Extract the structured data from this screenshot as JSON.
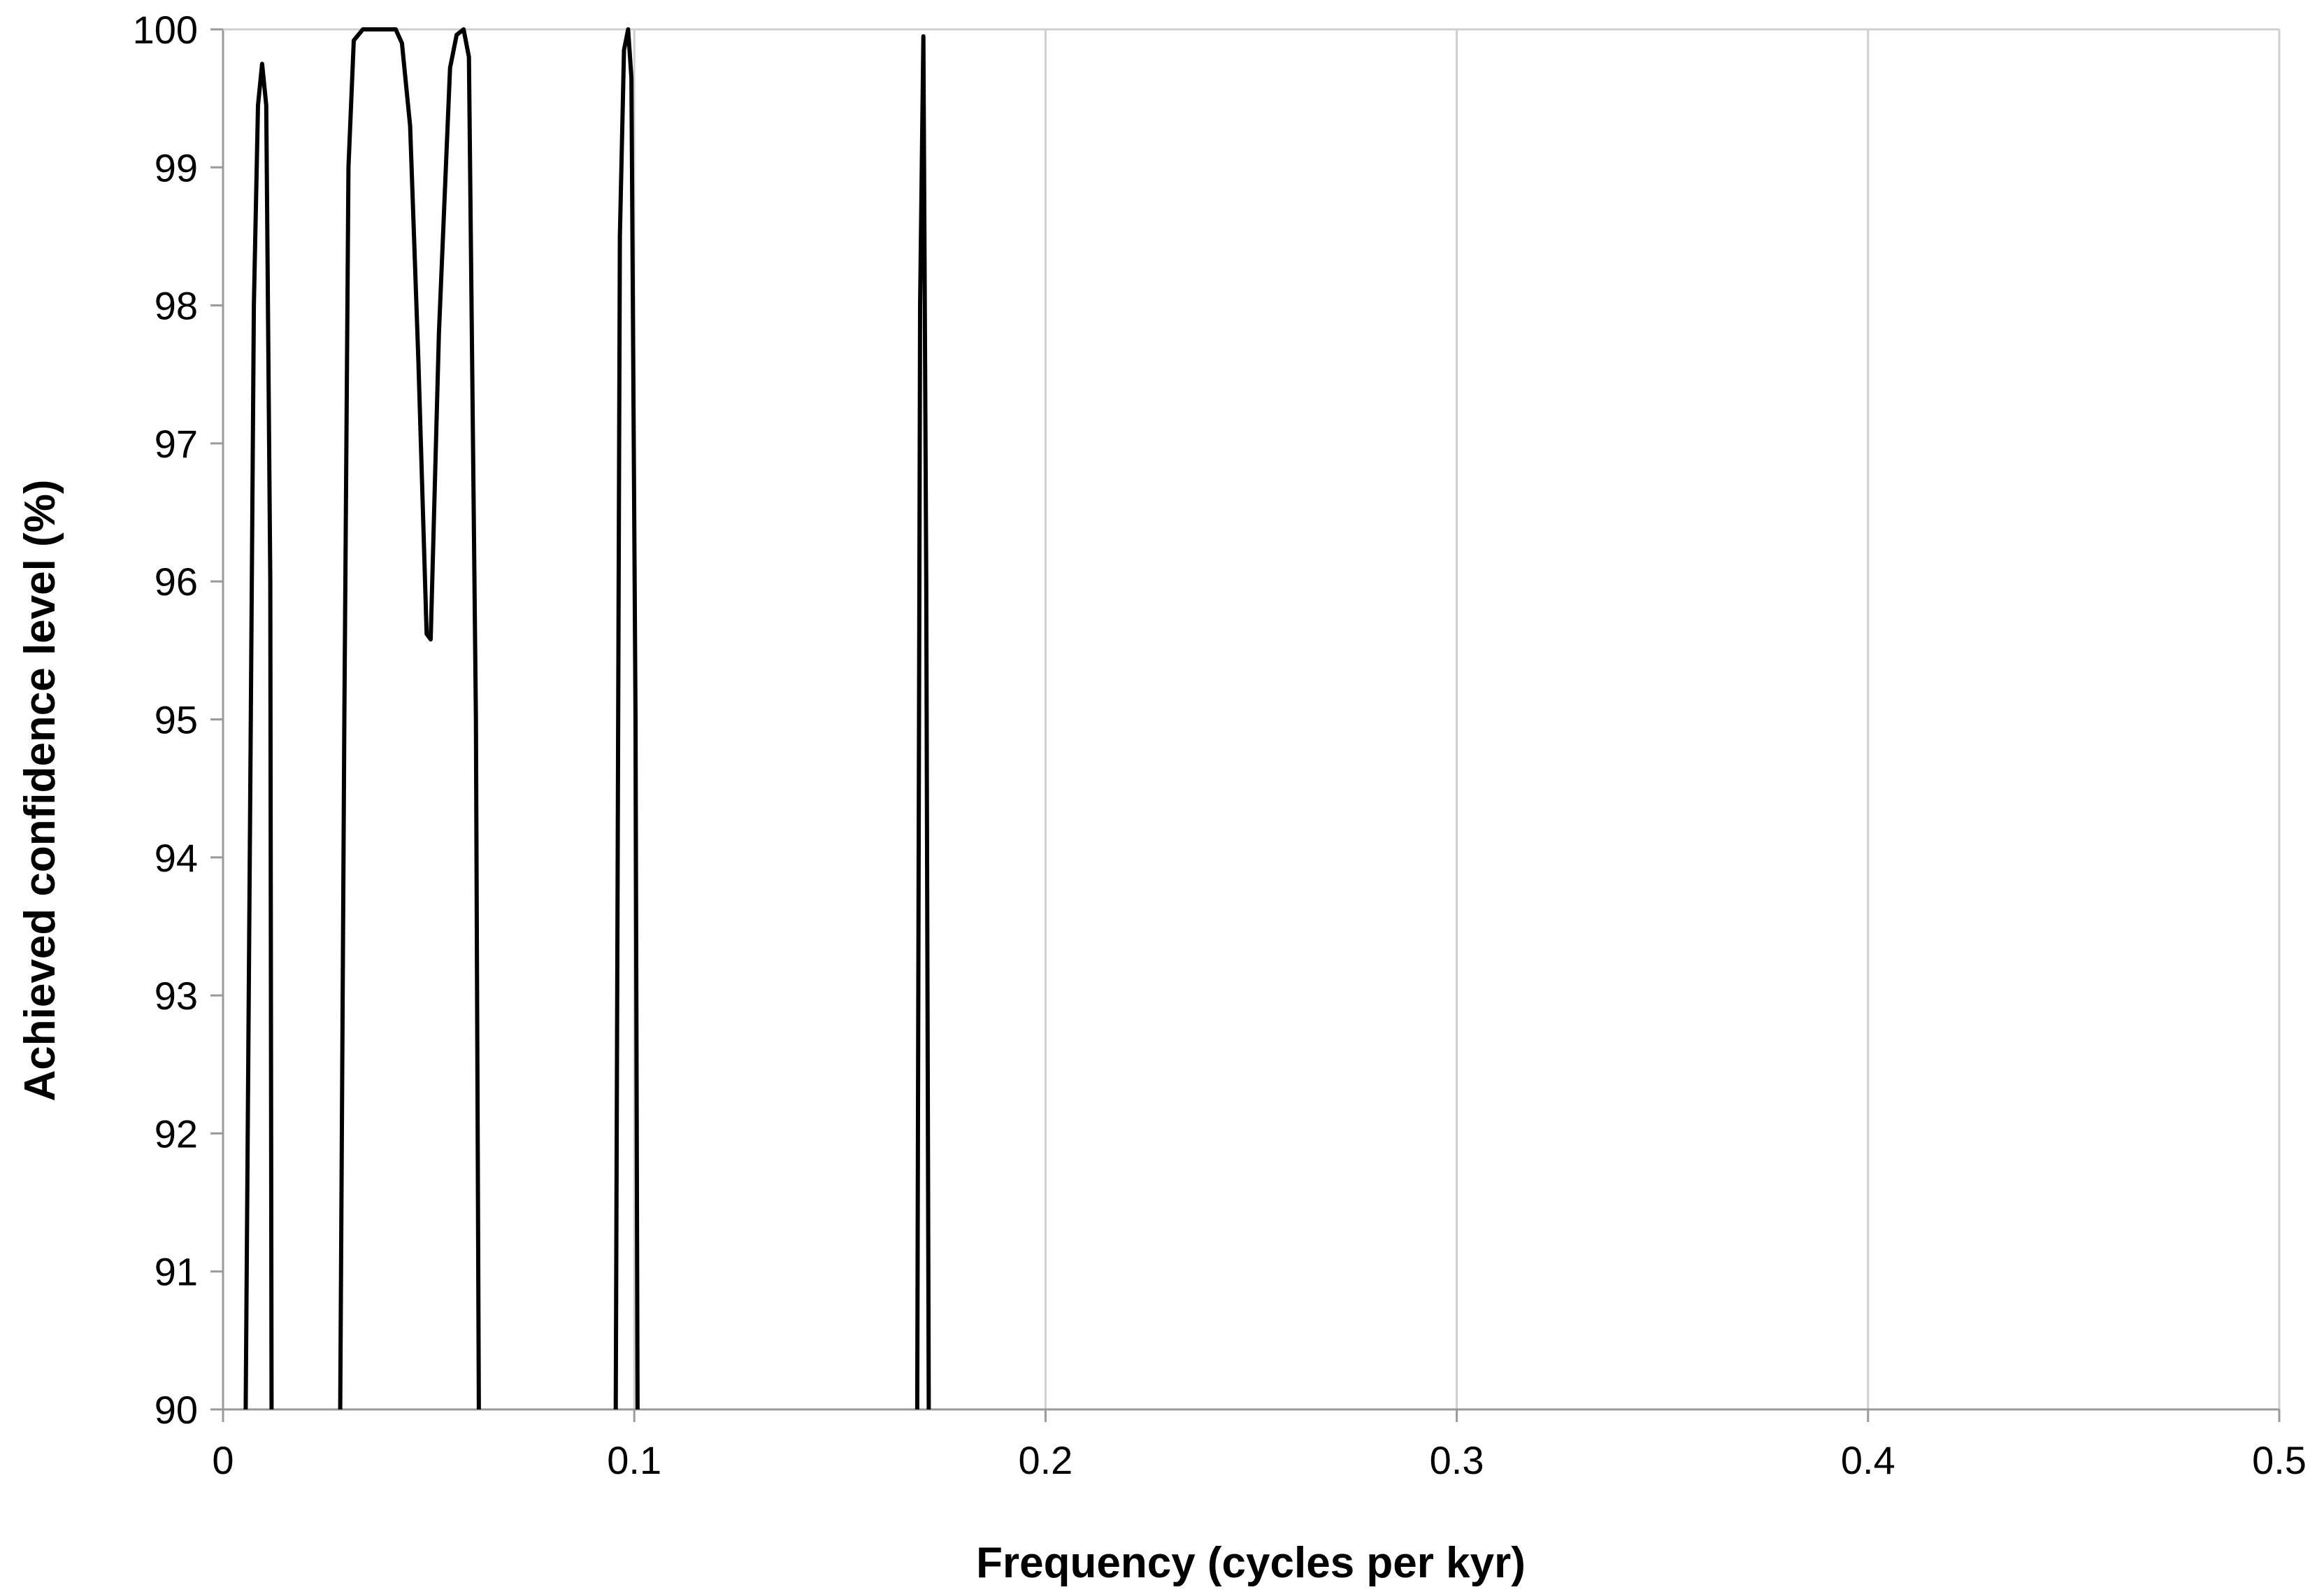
{
  "chart_data": {
    "type": "line",
    "title": "",
    "xlabel": "Frequency (cycles per kyr)",
    "ylabel": "Achieved confidence level (%)",
    "xlim": [
      0,
      0.5
    ],
    "ylim": [
      90,
      100
    ],
    "x_ticks": [
      "0",
      "0.1",
      "0.2",
      "0.3",
      "0.4",
      "0.5"
    ],
    "y_ticks": [
      "90",
      "91",
      "92",
      "93",
      "94",
      "95",
      "96",
      "97",
      "98",
      "99",
      "100"
    ],
    "grid": "vertical",
    "legend": "none",
    "line_color": "#000000",
    "series": [
      {
        "values": [
          [
            0.0055,
            90.0
          ],
          [
            0.0075,
            98.0
          ],
          [
            0.0085,
            99.45
          ],
          [
            0.0095,
            99.75
          ],
          [
            0.0105,
            99.45
          ],
          [
            0.0115,
            96.0
          ],
          [
            0.0118,
            90.0
          ]
        ]
      },
      {
        "values": [
          [
            0.0285,
            90.0
          ],
          [
            0.0295,
            95.0
          ],
          [
            0.0305,
            99.0
          ],
          [
            0.0318,
            99.92
          ],
          [
            0.034,
            100.0
          ],
          [
            0.042,
            100.0
          ],
          [
            0.0435,
            99.9
          ],
          [
            0.0455,
            99.3
          ],
          [
            0.0475,
            97.6
          ],
          [
            0.0495,
            95.62
          ],
          [
            0.0505,
            95.58
          ],
          [
            0.0525,
            97.8
          ],
          [
            0.0552,
            99.72
          ],
          [
            0.0568,
            99.96
          ],
          [
            0.0585,
            100.0
          ],
          [
            0.0598,
            99.8
          ],
          [
            0.0615,
            95.0
          ],
          [
            0.0622,
            90.0
          ]
        ]
      },
      {
        "values": [
          [
            0.0955,
            90.0
          ],
          [
            0.0965,
            98.5
          ],
          [
            0.0975,
            99.85
          ],
          [
            0.0985,
            100.0
          ],
          [
            0.0993,
            99.65
          ],
          [
            0.1003,
            95.0
          ],
          [
            0.1008,
            90.0
          ]
        ]
      },
      {
        "values": [
          [
            0.1688,
            90.0
          ],
          [
            0.1695,
            98.0
          ],
          [
            0.1703,
            99.95
          ],
          [
            0.171,
            96.0
          ],
          [
            0.1716,
            90.0
          ]
        ]
      }
    ]
  }
}
